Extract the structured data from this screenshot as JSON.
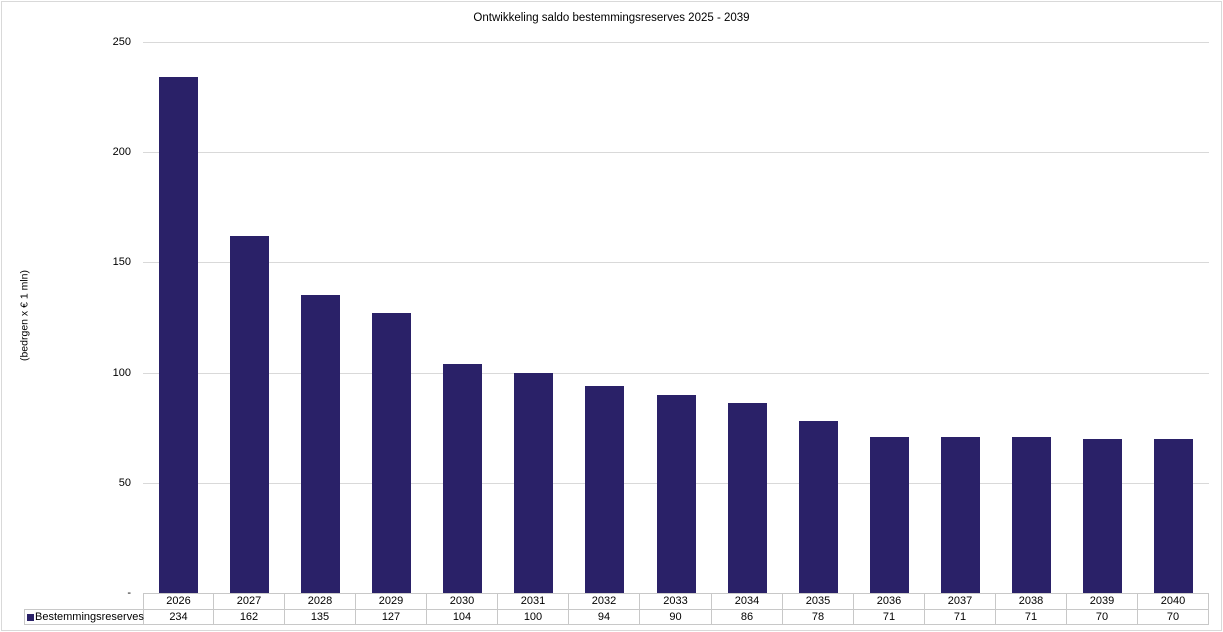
{
  "title": "Ontwikkeling saldo bestemmingsreserves 2025 - 2039",
  "y_axis": {
    "label": "(bedrgen x € 1 mln)",
    "ticks": [
      {
        "value": 0,
        "label": "-"
      },
      {
        "value": 50,
        "label": "50"
      },
      {
        "value": 100,
        "label": "100"
      },
      {
        "value": 150,
        "label": "150"
      },
      {
        "value": 200,
        "label": "200"
      },
      {
        "value": 250,
        "label": "250"
      }
    ]
  },
  "legend": {
    "label": "Bestemmingsreserves"
  },
  "colors": {
    "bar": "#2a2168",
    "gridline": "#d9d9d9",
    "table_border": "#c8c8c8",
    "chart_border": "#d9d9d9",
    "text": "#000000"
  },
  "chart_data": {
    "type": "bar",
    "title": "Ontwikkeling saldo bestemmingsreserves 2025 - 2039",
    "categories": [
      "2026",
      "2027",
      "2028",
      "2029",
      "2030",
      "2031",
      "2032",
      "2033",
      "2034",
      "2035",
      "2036",
      "2037",
      "2038",
      "2039",
      "2040"
    ],
    "series": [
      {
        "name": "Bestemmingsreserves",
        "values": [
          234,
          162,
          135,
          127,
          104,
          100,
          94,
          90,
          86,
          78,
          71,
          71,
          71,
          70,
          70
        ]
      }
    ],
    "xlabel": "",
    "ylabel": "(bedrgen x € 1 mln)",
    "ylim": [
      0,
      250
    ],
    "y_tick_step": 50,
    "zero_tick_label": "-",
    "grid": true,
    "grid_orientation": "horizontal",
    "legend_position": "bottom-left of data table",
    "data_table": true
  }
}
